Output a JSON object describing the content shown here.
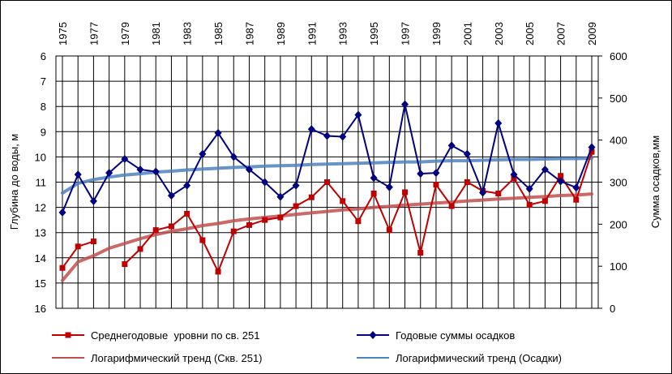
{
  "chart_data": {
    "type": "line",
    "x": [
      1975,
      1976,
      1977,
      1978,
      1979,
      1980,
      1981,
      1982,
      1983,
      1984,
      1985,
      1986,
      1987,
      1988,
      1989,
      1990,
      1991,
      1992,
      1993,
      1994,
      1995,
      1996,
      1997,
      1998,
      1999,
      2000,
      2001,
      2002,
      2003,
      2004,
      2005,
      2006,
      2007,
      2008,
      2009
    ],
    "x_tick_labels": [
      "1975",
      "1977",
      "1979",
      "1981",
      "1983",
      "1985",
      "1987",
      "1989",
      "1991",
      "1993",
      "1995",
      "1997",
      "1999",
      "2001",
      "2003",
      "2005",
      "2007",
      "2009"
    ],
    "y_left": {
      "label": "Глубина до воды, м",
      "ylim": [
        16,
        6
      ],
      "inverted": true,
      "ticks": [
        "6",
        "7",
        "8",
        "9",
        "10",
        "11",
        "12",
        "13",
        "14",
        "15",
        "16"
      ]
    },
    "y_right": {
      "label": "Сумма осадков,мм",
      "ylim": [
        0,
        600
      ],
      "ticks": [
        "0",
        "100",
        "200",
        "300",
        "400",
        "500",
        "600"
      ]
    },
    "grid": true,
    "legend_position": "bottom",
    "series": [
      {
        "name": "Среднегодовые  уровни по св. 251",
        "axis": "left",
        "color": "#c00000",
        "marker": "square",
        "values": [
          14.4,
          13.55,
          13.35,
          null,
          14.25,
          13.65,
          12.9,
          12.75,
          12.25,
          13.3,
          14.55,
          12.95,
          12.7,
          12.5,
          12.4,
          11.95,
          11.6,
          11.0,
          11.75,
          12.55,
          11.45,
          12.9,
          11.4,
          13.8,
          11.1,
          11.95,
          11.0,
          11.35,
          11.45,
          10.85,
          11.9,
          11.75,
          10.75,
          11.7,
          9.8
        ]
      },
      {
        "name": "Годовые суммы осадков",
        "axis": "right",
        "color": "#000080",
        "marker": "diamond",
        "values": [
          228,
          318,
          255,
          322,
          355,
          330,
          325,
          268,
          292,
          367,
          417,
          360,
          330,
          300,
          265,
          292,
          426,
          410,
          408,
          460,
          310,
          288,
          485,
          320,
          322,
          387,
          367,
          275,
          440,
          318,
          284,
          330,
          302,
          287,
          383
        ]
      },
      {
        "name": "Логарифмический тренд (Скв. 251)",
        "axis": "left",
        "color": "#c0504d",
        "style": "trend",
        "values": [
          14.9,
          14.16,
          13.92,
          13.62,
          13.43,
          13.24,
          13.08,
          12.95,
          12.85,
          12.72,
          12.64,
          12.53,
          12.46,
          12.4,
          12.34,
          12.28,
          12.22,
          12.16,
          12.1,
          12.06,
          12.0,
          11.96,
          11.91,
          11.87,
          11.83,
          11.79,
          11.75,
          11.71,
          11.67,
          11.64,
          11.6,
          11.57,
          11.53,
          11.51,
          11.47
        ]
      },
      {
        "name": "Логарифмический тренд (Осадки)",
        "axis": "right",
        "color": "#4f81bd",
        "style": "trend",
        "values": [
          274,
          297,
          306,
          312,
          317,
          320,
          324,
          326,
          329,
          331,
          333,
          335,
          336,
          338,
          339,
          340,
          342,
          343,
          344,
          345,
          346,
          347,
          348,
          348,
          350,
          351,
          351,
          352,
          353,
          354,
          354,
          355,
          356,
          356,
          357
        ]
      }
    ]
  }
}
